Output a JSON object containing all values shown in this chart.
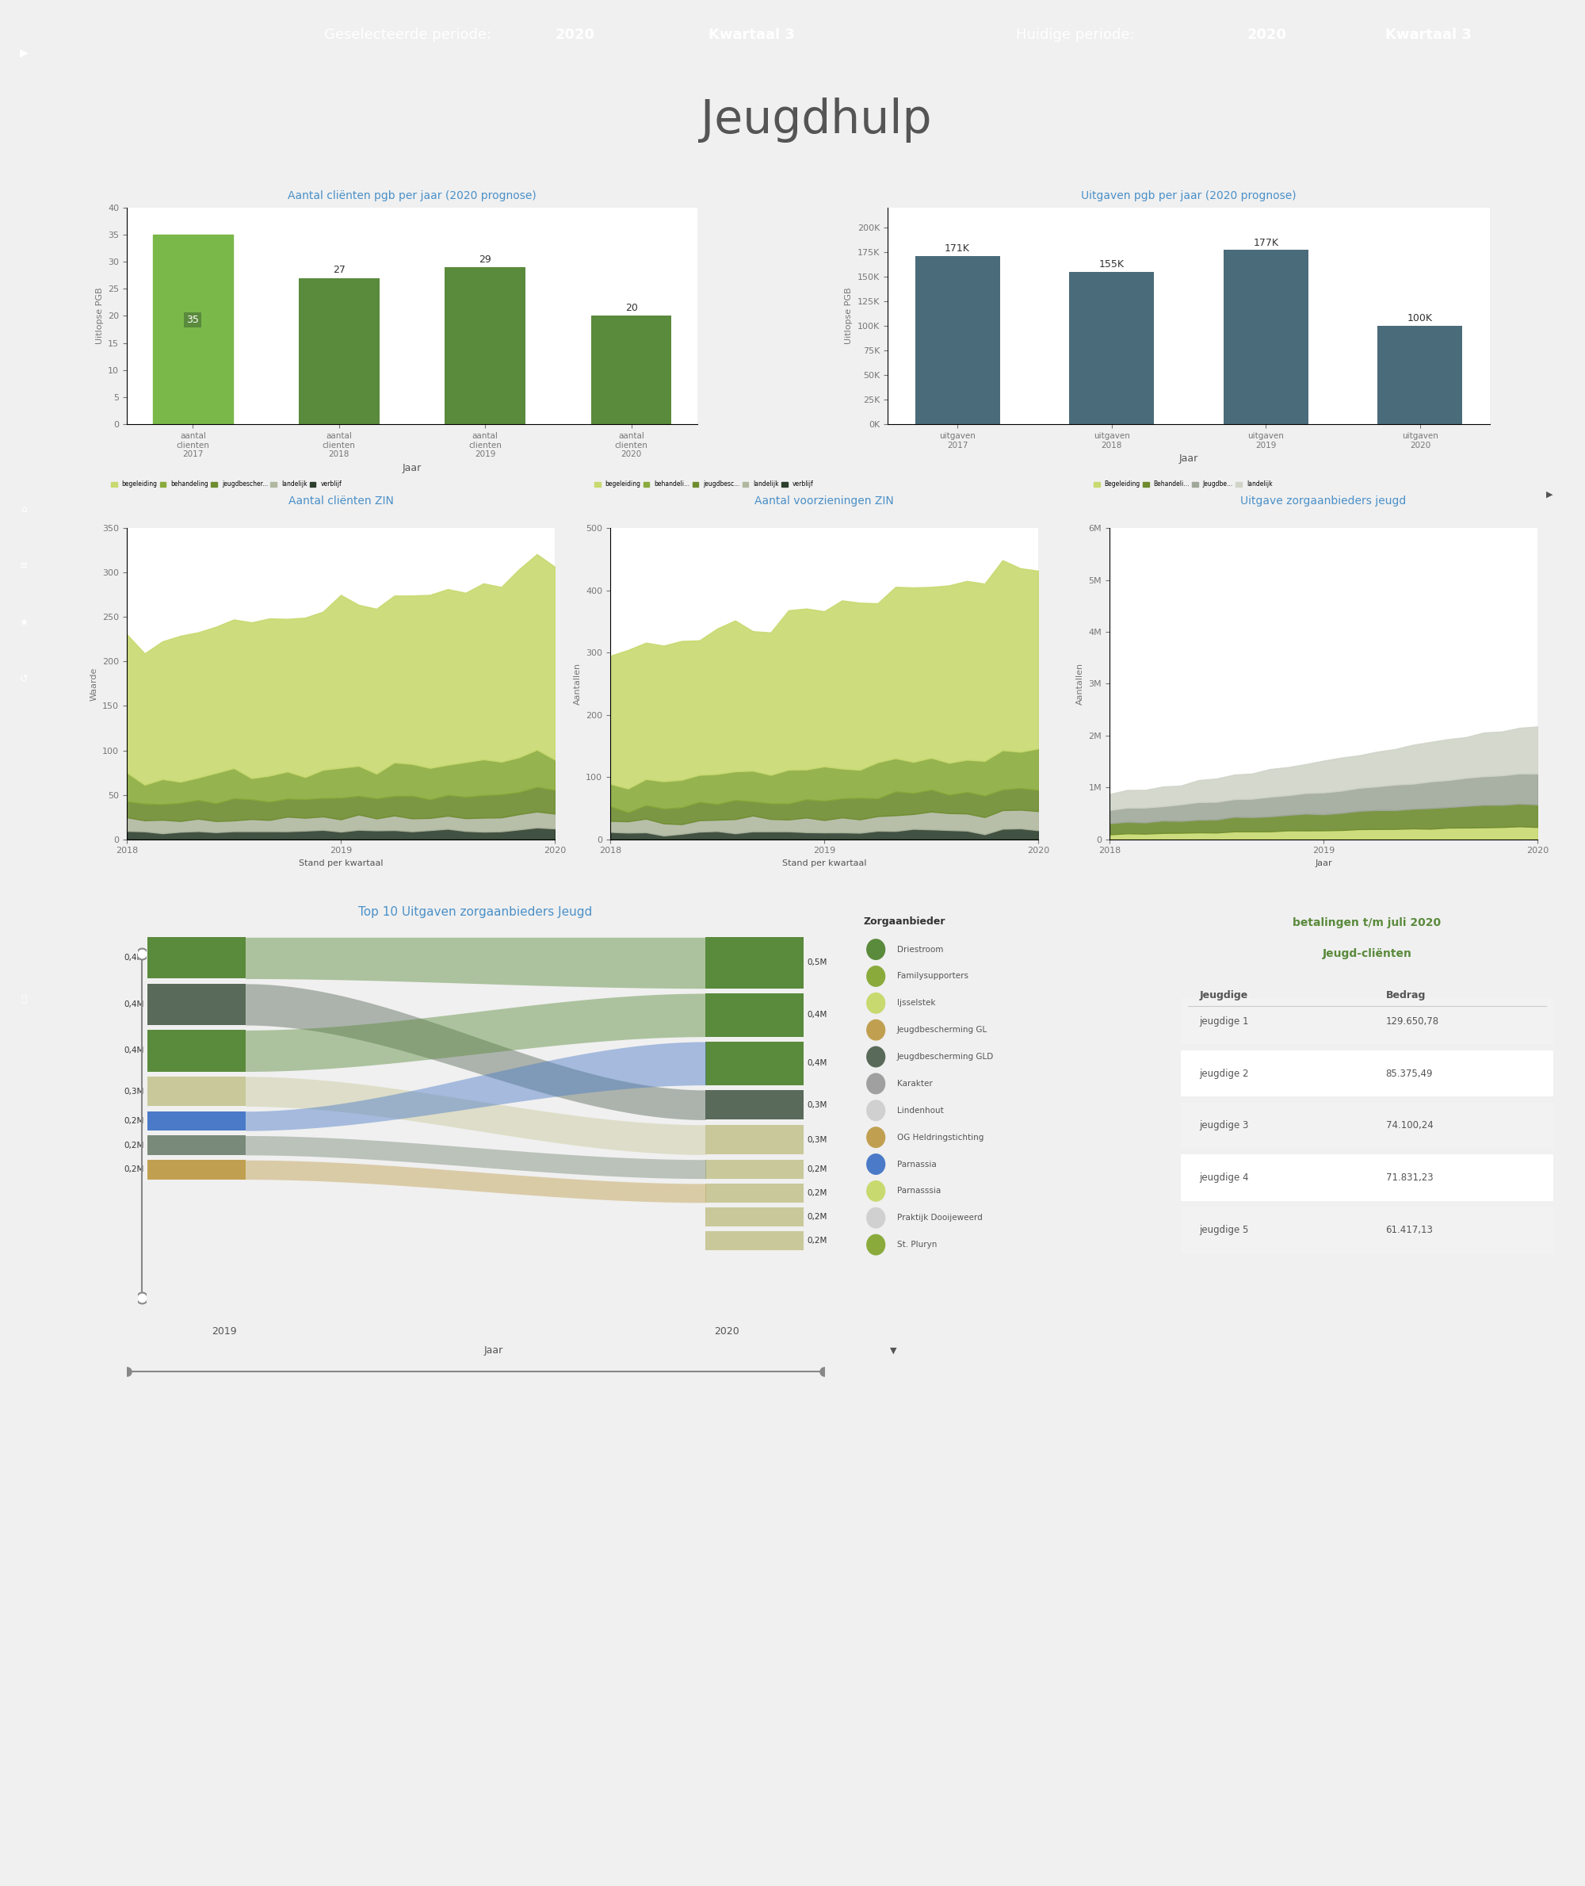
{
  "title_main": "Jeugdhulp",
  "header_left": "Geselecteerde periode:",
  "header_left_year": "2020",
  "header_left_kwartaal": "Kwartaal 3",
  "header_right": "Huidige periode:",
  "header_right_year": "2020",
  "header_right_kwartaal": "Kwartaal 3",
  "header_bg": "#6aaa4a",
  "sidebar_bg": "#6aaa4a",
  "page_bg": "#f0f0f0",
  "content_bg": "#ffffff",
  "bar1_title": "Aantal cliënten pgb per jaar (2020 prognose)",
  "bar1_categories": [
    "aantal clienten 2017",
    "aantal clienten 2018",
    "aantal clienten 2019",
    "aantal clienten 2020"
  ],
  "bar1_values": [
    35,
    27,
    29,
    20
  ],
  "bar1_color": "#5a8a3c",
  "bar1_ylabel": "Uitlopse PGB",
  "bar1_xlabel": "Jaar",
  "bar2_title": "Uitgaven pgb per jaar (2020 prognose)",
  "bar2_categories": [
    "uitgaven 2017",
    "uitgaven 2018",
    "uitgaven 2019",
    "uitgaven 2020"
  ],
  "bar2_values": [
    171000,
    155000,
    177000,
    100000
  ],
  "bar2_labels": [
    "171K",
    "155K",
    "177K",
    "100K"
  ],
  "bar2_color": "#4a6b7a",
  "bar2_ylabel": "Uitlopse PGB",
  "bar2_xlabel": "Jaar",
  "area1_title": "Aantal cliënten ZIN",
  "area1_xlabel": "Stand per kwartaal",
  "area1_ylabel": "Waarde",
  "area1_legend": [
    "begeleiding",
    "behandeling",
    "jeugdbescher...",
    "landelijk",
    "verblijf"
  ],
  "area1_colors": [
    "#c8d96f",
    "#8aab3c",
    "#6e8c2f",
    "#c0c0c0",
    "#2c3e2d"
  ],
  "area2_title": "Aantal voorzieningen ZIN",
  "area2_xlabel": "Stand per kwartaal",
  "area2_ylabel": "Aantallen",
  "area2_legend": [
    "begeleiding",
    "behandeli...",
    "jeugdbesc...",
    "landelijk",
    "verblijf"
  ],
  "area2_colors": [
    "#c8d96f",
    "#8aab3c",
    "#6e8c2f",
    "#c0c0c0",
    "#2c3e2d"
  ],
  "area3_title": "Uitgave zorgaanbieders jeugd",
  "area3_xlabel": "Jaar",
  "area3_ylabel": "Aantallen",
  "area3_legend": [
    "Begeleiding",
    "Behandeli...",
    "Jeugdbe...",
    "landelijk"
  ],
  "area3_colors": [
    "#c8d96f",
    "#8aab3c",
    "#c0c0c0",
    "#2c3e2d"
  ],
  "sankey_title": "Top 10 Uitgaven zorgaanbieders Jeugd",
  "sankey_left_labels": [
    "0,4M",
    "0,4M",
    "0,4M",
    "0,3M",
    "0,2M",
    "0,2M",
    "0,2M"
  ],
  "sankey_left_colors": [
    "#5a8a3c",
    "#5a6a5a",
    "#5a8a3c",
    "#c8c89a",
    "#4a7ac8",
    "#7a8a7a",
    "#c0a050"
  ],
  "sankey_right_labels": [
    "0,5M",
    "0,4M",
    "0,4M",
    "0,3M",
    "0,3M",
    "0,2M",
    "0,2M",
    "0,2M",
    "0,2M"
  ],
  "sankey_right_colors": [
    "#5a8a3c",
    "#5a8a3c",
    "#5a8a3c",
    "#5a6a5a",
    "#c8c89a",
    "#c8c89a",
    "#c8c89a",
    "#c8c89a",
    "#c8c89a"
  ],
  "legend_providers": [
    "Driestroom",
    "Familysupporters",
    "Ijsselstek",
    "Jeugdbescherming GL",
    "Jeugdbescherming GLD",
    "Karakter",
    "Lindenhout",
    "OG Heldringstichting",
    "Parnassia",
    "Parnasssia",
    "Praktijk Dooijeweerd",
    "St. Pluryn"
  ],
  "legend_provider_colors": [
    "#5a8a3c",
    "#8aab3c",
    "#c8d96f",
    "#c0a050",
    "#5a6a5a",
    "#a0a0a0",
    "#d0d0d0",
    "#c0a050",
    "#4a7ac8",
    "#c8d96f",
    "#d0d0d0",
    "#8aab3c"
  ],
  "payments_title_line1": "betalingen t/m juli 2020",
  "payments_title_line2": "Jeugd-cliënten",
  "payments_col1": "Jeugdige",
  "payments_col2": "Bedrag",
  "payments_data": [
    [
      "jeugdige 1",
      "129.650,78"
    ],
    [
      "jeugdige 2",
      "85.375,49"
    ],
    [
      "jeugdige 3",
      "74.100,24"
    ],
    [
      "jeugdige 4",
      "71.831,23"
    ],
    [
      "jeugdige 5",
      "61.417,13"
    ]
  ],
  "green_dark": "#5a8a3c",
  "green_mid": "#8aab3c",
  "green_light": "#c8d96f",
  "gray_dark": "#4a6b7a",
  "gray_mid": "#8a9a9a",
  "gray_light": "#c0c8c8"
}
